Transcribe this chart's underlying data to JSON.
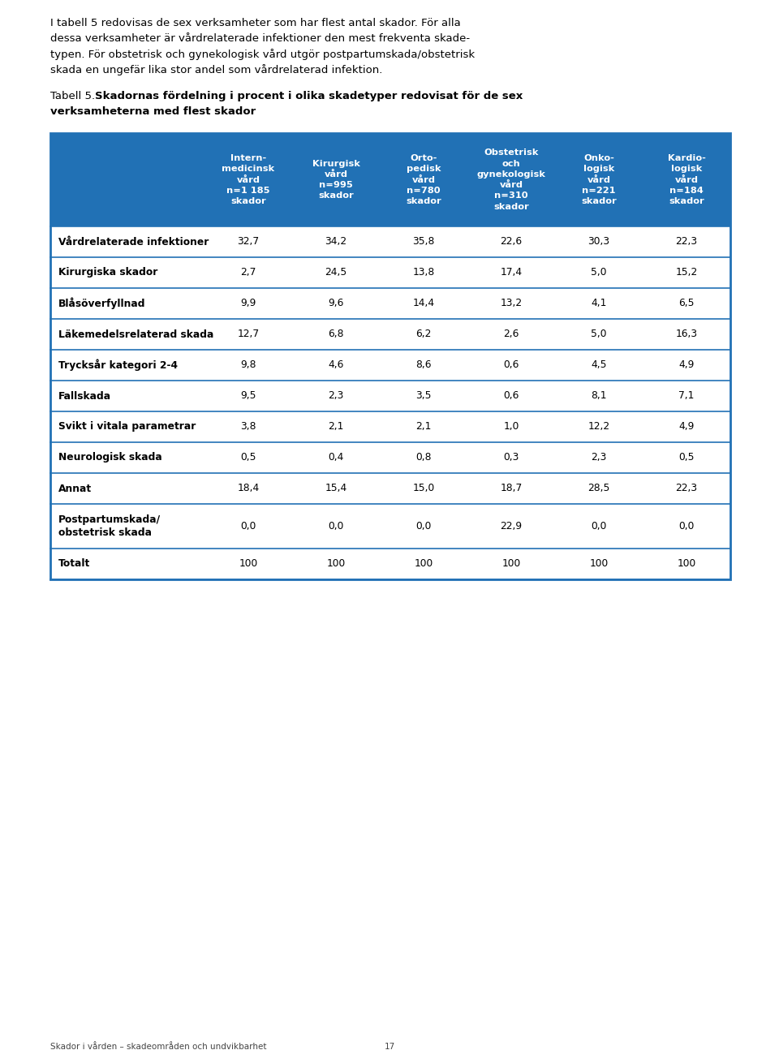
{
  "intro_text": "I tabell 5 redovisas de sex verksamheter som har flest antal skador. För alla\ndessa verksamheter är vårdrelaterade infektioner den mest frekventa skade-\ntypen. För obstetrisk och gynekologisk vård utgör postpartumskada/obstetrisk\nskada en ungefär lika stor andel som vårdrelaterad infektion.",
  "table_title_normal": "Tabell 5. ",
  "table_title_bold": "Skadornas fördelning i procent i olika skadetyper redovisat för de sex\nverksamheterna med flest skador",
  "header_bg_color": "#2171b5",
  "header_text_color": "#ffffff",
  "border_color": "#2171b5",
  "col_headers": [
    "Intern-\nmedicinsk\nvård\nn=1 185\nskador",
    "Kirurgisk\nvård\nn=995\nskador",
    "Orto-\npedisk\nvård\nn=780\nskador",
    "Obstetrisk\noch\ngynekologisk\nvård\nn=310\nskador",
    "Onko-\nlogisk\nvård\nn=221\nskador",
    "Kardio-\nlogisk\nvård\nn=184\nskador"
  ],
  "rows": [
    {
      "label": "Vårdrelaterade infektioner",
      "values": [
        "32,7",
        "34,2",
        "35,8",
        "22,6",
        "30,3",
        "22,3"
      ],
      "two_line": false
    },
    {
      "label": "Kirurgiska skador",
      "values": [
        "2,7",
        "24,5",
        "13,8",
        "17,4",
        "5,0",
        "15,2"
      ],
      "two_line": false
    },
    {
      "label": "Blåsöverfyllnad",
      "values": [
        "9,9",
        "9,6",
        "14,4",
        "13,2",
        "4,1",
        "6,5"
      ],
      "two_line": false
    },
    {
      "label": "Läkemedelsrelaterad skada",
      "values": [
        "12,7",
        "6,8",
        "6,2",
        "2,6",
        "5,0",
        "16,3"
      ],
      "two_line": false
    },
    {
      "label": "Trycksår kategori 2-4",
      "values": [
        "9,8",
        "4,6",
        "8,6",
        "0,6",
        "4,5",
        "4,9"
      ],
      "two_line": false
    },
    {
      "label": "Fallskada",
      "values": [
        "9,5",
        "2,3",
        "3,5",
        "0,6",
        "8,1",
        "7,1"
      ],
      "two_line": false
    },
    {
      "label": "Svikt i vitala parametrar",
      "values": [
        "3,8",
        "2,1",
        "2,1",
        "1,0",
        "12,2",
        "4,9"
      ],
      "two_line": false
    },
    {
      "label": "Neurologisk skada",
      "values": [
        "0,5",
        "0,4",
        "0,8",
        "0,3",
        "2,3",
        "0,5"
      ],
      "two_line": false
    },
    {
      "label": "Annat",
      "values": [
        "18,4",
        "15,4",
        "15,0",
        "18,7",
        "28,5",
        "22,3"
      ],
      "two_line": false
    },
    {
      "label": "Postpartumskada/\nobstetrisk skada",
      "values": [
        "0,0",
        "0,0",
        "0,0",
        "22,9",
        "0,0",
        "0,0"
      ],
      "two_line": true
    },
    {
      "label": "Totalt",
      "values": [
        "100",
        "100",
        "100",
        "100",
        "100",
        "100"
      ],
      "two_line": false
    }
  ],
  "footer_text": "Skador i vården – skadeområden och undvikbarhet",
  "footer_page": "17"
}
